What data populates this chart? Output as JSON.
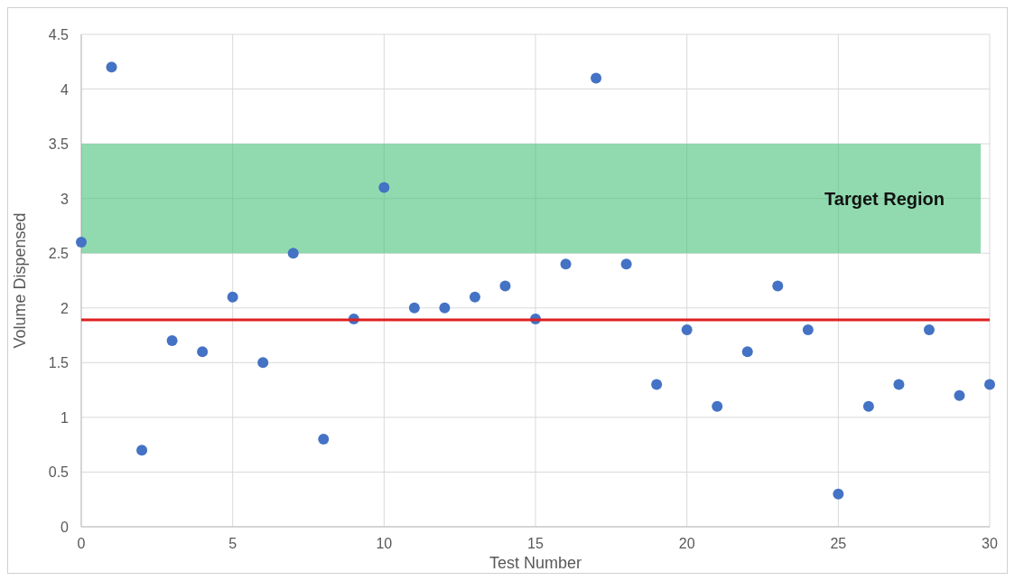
{
  "chart_data": {
    "type": "scatter",
    "xlabel": "Test Number",
    "ylabel": "Volume Dispensed",
    "x": [
      0,
      1,
      2,
      3,
      4,
      5,
      6,
      7,
      8,
      9,
      10,
      11,
      12,
      13,
      14,
      15,
      16,
      17,
      18,
      19,
      20,
      21,
      22,
      23,
      24,
      25,
      26,
      27,
      28,
      29,
      30
    ],
    "series": [
      {
        "color": "#4472c4",
        "values": [
          2.6,
          4.2,
          0.7,
          1.7,
          1.6,
          2.1,
          1.5,
          2.5,
          0.8,
          1.9,
          3.1,
          2.0,
          2.0,
          2.1,
          2.2,
          1.9,
          2.4,
          4.1,
          2.4,
          1.3,
          1.8,
          1.1,
          1.6,
          2.2,
          1.8,
          0.3,
          1.1,
          1.3,
          1.8,
          1.2,
          1.3
        ]
      }
    ],
    "xlim": [
      0,
      30
    ],
    "xticks": [
      0,
      5,
      10,
      15,
      20,
      25,
      30
    ],
    "ylim": [
      0,
      4.5
    ],
    "yticks": [
      0,
      0.5,
      1,
      1.5,
      2,
      2.5,
      3,
      3.5,
      4,
      4.5
    ],
    "ref_lines": [
      {
        "axis": "y",
        "value": 1.89,
        "color": "#e02020"
      }
    ],
    "bands": [
      {
        "axis": "y",
        "from": 2.5,
        "to": 3.5,
        "label": "Target Region",
        "color": "#47c27a"
      }
    ],
    "grid": true,
    "marker": "circle"
  }
}
